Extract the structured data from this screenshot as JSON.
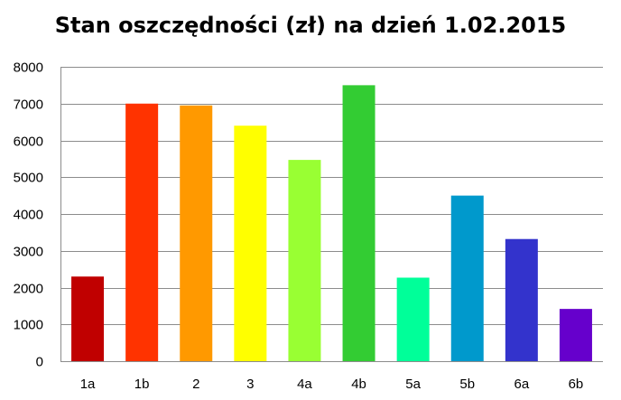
{
  "chart_data": {
    "type": "bar",
    "title": "Stan oszczędności (zł) na dzień 1.02.2015",
    "xlabel": "",
    "ylabel": "",
    "categories": [
      "1a",
      "1b",
      "2",
      "3",
      "4a",
      "4b",
      "5a",
      "5b",
      "6a",
      "6b"
    ],
    "values": [
      2300,
      7000,
      6950,
      6400,
      5470,
      7500,
      2270,
      4500,
      3320,
      1420
    ],
    "colors": [
      "#C00000",
      "#FF3300",
      "#FF9900",
      "#FFFF00",
      "#99FF33",
      "#33CC33",
      "#00FF99",
      "#0099CC",
      "#3333CC",
      "#6600CC"
    ],
    "ylim": [
      0,
      8000
    ],
    "yticks": [
      "0",
      "1000",
      "2000",
      "3000",
      "4000",
      "5000",
      "6000",
      "7000",
      "8000"
    ],
    "grid": true,
    "legend": "none"
  }
}
